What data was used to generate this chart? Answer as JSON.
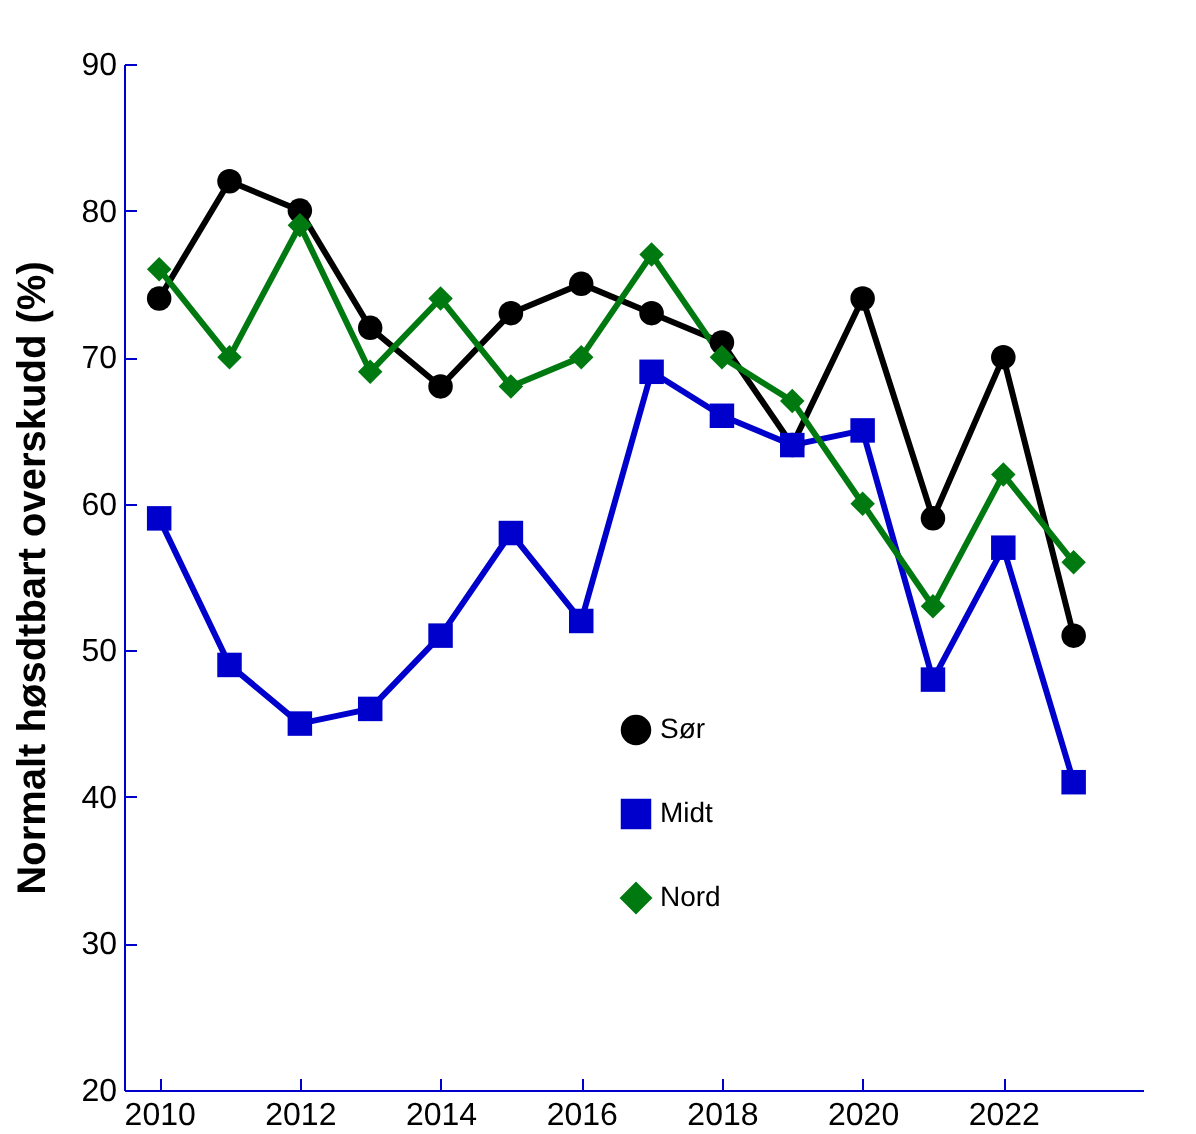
{
  "chart_data": {
    "type": "line",
    "ylabel": "Normalt høsdtbart overskudd  (%)",
    "x": [
      2010,
      2011,
      2012,
      2013,
      2014,
      2015,
      2016,
      2017,
      2018,
      2019,
      2020,
      2021,
      2022,
      2023
    ],
    "series": [
      {
        "name": "Sør",
        "color": "#000000",
        "marker": "circle",
        "values": [
          74,
          82,
          80,
          72,
          68,
          73,
          75,
          73,
          71,
          64,
          74,
          59,
          70,
          51
        ]
      },
      {
        "name": "Midt",
        "color": "#0000cc",
        "marker": "square",
        "values": [
          59,
          49,
          45,
          46,
          51,
          58,
          52,
          69,
          66,
          64,
          65,
          48,
          57,
          41
        ]
      },
      {
        "name": "Nord",
        "color": "#007a10",
        "marker": "diamond",
        "values": [
          76,
          70,
          79,
          69,
          74,
          68,
          70,
          77,
          70,
          67,
          60,
          53,
          62,
          56
        ]
      }
    ],
    "xlim": [
      2009.5,
      2024
    ],
    "xticks": [
      2010,
      2012,
      2014,
      2016,
      2018,
      2020,
      2022
    ],
    "ylim": [
      20,
      90
    ],
    "yticks": [
      20,
      30,
      40,
      50,
      60,
      70,
      80,
      90
    ],
    "grid": false,
    "legend": "bottom right",
    "line_style": "solid"
  }
}
